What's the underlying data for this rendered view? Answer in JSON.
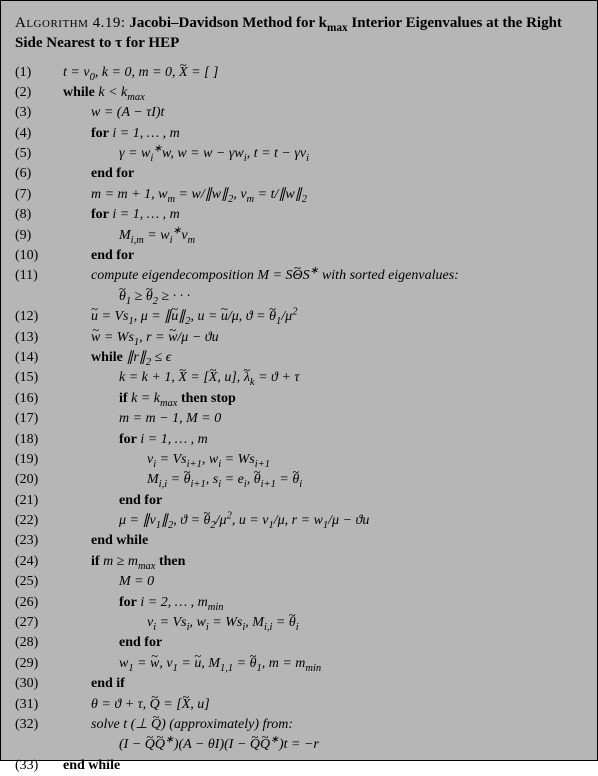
{
  "title": {
    "prefix": "Algorithm 4.19:",
    "rest": "Jacobi–Davidson Method for k",
    "sub": "max",
    "rest2": " Interior Eigenvalues at the Right Side Nearest to τ for HEP"
  },
  "lines": [
    {
      "n": "(1)",
      "ind": 1,
      "html": "t = v<sub>0</sub>, k = 0,  m = 0,  <span class='tilde'>X</span> = [ ]"
    },
    {
      "n": "(2)",
      "ind": 1,
      "html": "<b class='rm'>while</b> k &lt; k<sub>max</sub>"
    },
    {
      "n": "(3)",
      "ind": 2,
      "html": "w = (A − τI)t"
    },
    {
      "n": "(4)",
      "ind": 2,
      "html": "<b class='rm'>for</b> i = 1, … , m"
    },
    {
      "n": "(5)",
      "ind": 3,
      "html": "γ = w<sub>i</sub><sup>∗</sup>w, w = w − γw<sub>i</sub>, t = t − γv<sub>i</sub>"
    },
    {
      "n": "(6)",
      "ind": 2,
      "html": "<b class='rm'>end for</b>"
    },
    {
      "n": "(7)",
      "ind": 2,
      "html": "m = m + 1, w<sub>m</sub> = w/∥w∥<sub>2</sub>, v<sub>m</sub> = t/∥w∥<sub>2</sub>"
    },
    {
      "n": "(8)",
      "ind": 2,
      "html": "<b class='rm'>for</b> i = 1, … , m"
    },
    {
      "n": "(9)",
      "ind": 3,
      "html": "M<sub>i,m</sub> = w<sub>i</sub><sup>∗</sup>v<sub>m</sub>"
    },
    {
      "n": "(10)",
      "ind": 2,
      "html": "<b class='rm'>end for</b>"
    },
    {
      "n": "(11)",
      "ind": 2,
      "html": "compute eigendecomposition M = S<span class='tilde'>Θ</span>S<sup>∗</sup> with sorted eigenvalues:"
    },
    {
      "n": "",
      "ind": 3,
      "html": "<span class='tilde'>θ</span><sub>1</sub> ≥ <span class='tilde'>θ</span><sub>2</sub> ≥ · · ·"
    },
    {
      "n": "(12)",
      "ind": 2,
      "html": "<span class='tilde'>u</span> = Vs<sub>1</sub>, μ = ∥<span class='tilde'>u</span>∥<sub>2</sub>, u = <span class='tilde'>u</span>/μ, ϑ = <span class='tilde'>θ</span><sub>1</sub>/μ<sup>2</sup>"
    },
    {
      "n": "(13)",
      "ind": 2,
      "html": "<span class='tilde'>w</span> = Ws<sub>1</sub>, r = <span class='tilde'>w</span>/μ − ϑu"
    },
    {
      "n": "(14)",
      "ind": 2,
      "html": "<b class='rm'>while</b> ∥r∥<sub>2</sub> ≤ ϵ"
    },
    {
      "n": "(15)",
      "ind": 3,
      "html": "k = k + 1, <span class='tilde'>X</span> = [<span class='tilde'>X</span>, u], <span class='tilde'>λ</span><sub>k</sub> = ϑ + τ"
    },
    {
      "n": "(16)",
      "ind": 3,
      "html": "<b class='rm'>if</b> k = k<sub>max</sub> <b class='rm'>then stop</b>"
    },
    {
      "n": "(17)",
      "ind": 3,
      "html": "m = m − 1, M = 0"
    },
    {
      "n": "(18)",
      "ind": 3,
      "html": "<b class='rm'>for</b> i = 1, … , m"
    },
    {
      "n": "(19)",
      "ind": 4,
      "html": "v<sub>i</sub> = Vs<sub>i+1</sub>, w<sub>i</sub> = Ws<sub>i+1</sub>"
    },
    {
      "n": "(20)",
      "ind": 4,
      "html": "M<sub>i,i</sub> = <span class='tilde'>θ</span><sub>i+1</sub>, s<sub>i</sub> = e<sub>i</sub>, <span class='tilde'>θ</span><sub>i+1</sub> = <span class='tilde'>θ</span><sub>i</sub>"
    },
    {
      "n": "(21)",
      "ind": 3,
      "html": "<b class='rm'>end for</b>"
    },
    {
      "n": "(22)",
      "ind": 3,
      "html": "μ = ∥v<sub>1</sub>∥<sub>2</sub>, ϑ = <span class='tilde'>θ</span><sub>2</sub>/μ<sup>2</sup>, u = v<sub>1</sub>/μ, r = w<sub>1</sub>/μ − ϑu"
    },
    {
      "n": "(23)",
      "ind": 2,
      "html": "<b class='rm'>end while</b>"
    },
    {
      "n": "(24)",
      "ind": 2,
      "html": "<b class='rm'>if</b> m ≥ m<sub>max</sub> <b class='rm'>then</b>"
    },
    {
      "n": "(25)",
      "ind": 3,
      "html": "M = 0"
    },
    {
      "n": "(26)",
      "ind": 3,
      "html": "<b class='rm'>for</b> i = 2, … , m<sub>min</sub>"
    },
    {
      "n": "(27)",
      "ind": 4,
      "html": "v<sub>i</sub> = Vs<sub>i</sub>, w<sub>i</sub> = Ws<sub>i</sub>, M<sub>i,i</sub> = <span class='tilde'>θ</span><sub>i</sub>"
    },
    {
      "n": "(28)",
      "ind": 3,
      "html": "<b class='rm'>end for</b>"
    },
    {
      "n": "(29)",
      "ind": 3,
      "html": "w<sub>1</sub> = <span class='tilde'>w</span>, v<sub>1</sub> = <span class='tilde'>u</span>, M<sub>1,1</sub> = <span class='tilde'>θ</span><sub>1</sub>, m = m<sub>min</sub>"
    },
    {
      "n": "(30)",
      "ind": 2,
      "html": "<b class='rm'>end if</b>"
    },
    {
      "n": "(31)",
      "ind": 2,
      "html": "θ = ϑ + τ, <span class='tilde'>Q</span> = [<span class='tilde'>X</span>, u]"
    },
    {
      "n": "(32)",
      "ind": 2,
      "html": "solve t (⊥ <span class='tilde'>Q</span>)  (approximately) from:"
    },
    {
      "n": "",
      "ind": 3,
      "html": "(I − <span class='tilde'>Q</span><span class='tilde'>Q</span><sup>∗</sup>)(A − θI)(I − <span class='tilde'>Q</span><span class='tilde'>Q</span><sup>∗</sup>)t = −r"
    },
    {
      "n": "(33)",
      "ind": 1,
      "html": "<b class='rm'>end while</b>"
    }
  ]
}
